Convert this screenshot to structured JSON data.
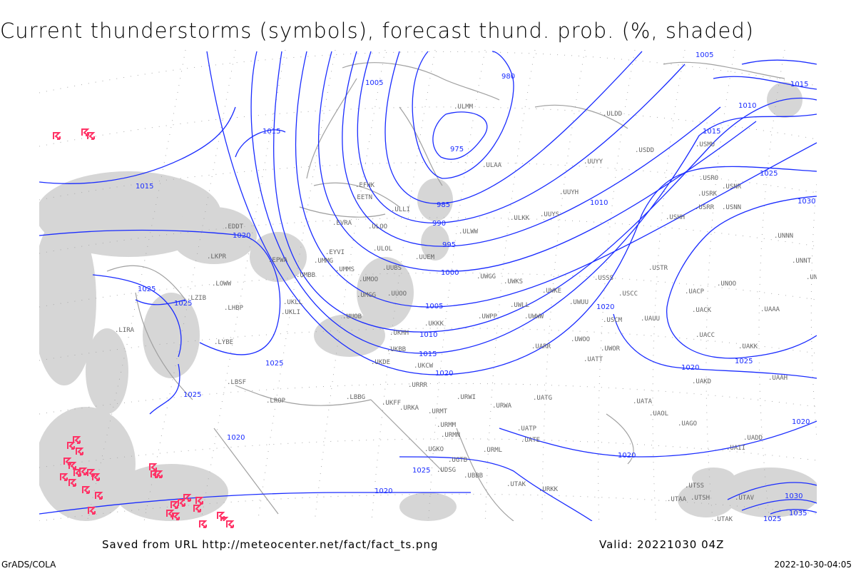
{
  "title": "Current thunderstorms (symbols), forecast thund. prob. (%, shaded)",
  "footer": {
    "saved_from": "Saved from URL http://meteocenter.net/fact/fact_ts.png",
    "valid": "Valid: 20221030 04Z",
    "software": "GrADS/COLA",
    "timestamp": "2022-10-30-04:05"
  },
  "colors": {
    "isobar": "#1a2cff",
    "coast": "#a0a0a0",
    "shade": "#d0d0d0",
    "thunder": "#ff3366",
    "grid": "#999999"
  },
  "isobar_labels": [
    "1005",
    "980",
    "975",
    "985",
    "990",
    "995",
    "1000",
    "1005",
    "1010",
    "1015",
    "1020",
    "1015",
    "1015",
    "1020",
    "1025",
    "1025",
    "1025",
    "1025",
    "1010",
    "1015",
    "1020",
    "1025",
    "1030",
    "1020",
    "1020",
    "1025",
    "1020",
    "1020",
    "1025",
    "1030",
    "1035",
    "1025",
    "1020",
    "1005",
    "1010",
    "1015"
  ],
  "stations": [
    "EFHK",
    "EETN",
    "ULLI",
    "EVRA",
    "ULOO",
    "ULOL",
    "UUEM",
    "ULMM",
    "ULAA",
    "ULKK",
    "ULWW",
    "UMMS",
    "UMOO",
    "UUBS",
    "UMGG",
    "UUOO",
    "UKKK",
    "UUOB",
    "UKHH",
    "UKBB",
    "UKDE",
    "UKCW",
    "URRR",
    "UWWW",
    "UWPP",
    "UWGG",
    "UWKS",
    "UWKE",
    "UWUU",
    "UWLL",
    "UUYY",
    "UUYH",
    "UUYS",
    "ULDD",
    "USSS",
    "USCC",
    "USCM",
    "UAUU",
    "UACC",
    "UAKK",
    "UATT",
    "UWOR",
    "UARR",
    "UWOO",
    "USTR",
    "UNOO",
    "UAAA",
    "UNNT",
    "UNBB",
    "USMU",
    "USRO",
    "USRK",
    "USNR",
    "USNN",
    "USRR",
    "USHH",
    "USDD",
    "UATG",
    "UATP",
    "UATE",
    "URWI",
    "URWA",
    "URMT",
    "URMM",
    "URMN",
    "URML",
    "UGKO",
    "UGTB",
    "UDSG",
    "UBBB",
    "UTAK",
    "URKK",
    "URKA",
    "UKFF",
    "LBBG",
    "LROP",
    "LYBE",
    "LHBP",
    "LZIB",
    "LKPR",
    "EPWA",
    "UMBB",
    "UKLL",
    "UKLI",
    "EDDT",
    "LOWW",
    "LIRA",
    "LBSF",
    "UMMG",
    "EYVI",
    "UACP",
    "UACK",
    "UATA",
    "UAOL",
    "UAGO",
    "UADD",
    "UAII",
    "UTSS",
    "UTSH",
    "UTAA",
    "UTAK",
    "UTAV",
    "UAAH",
    "UAKD",
    "UNNN"
  ]
}
